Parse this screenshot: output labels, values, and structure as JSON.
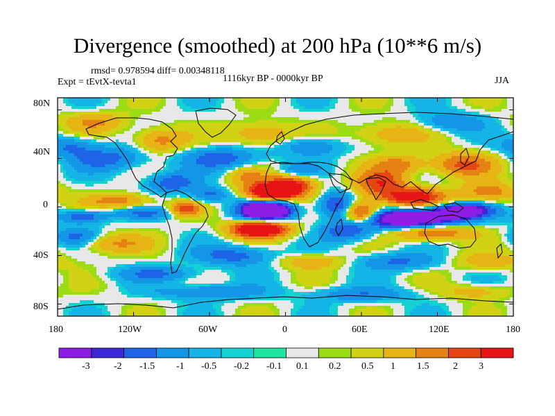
{
  "figure": {
    "title": "Divergence (smoothed) at 200 hPa (10**6 m/s)",
    "stats": "rmsd= 0.978594 diff= 0.00348118",
    "experiment": "Expt = tEvtX-tevta1",
    "period": "1116kyr BP - 0000kyr BP",
    "season": "JJA"
  },
  "axes": {
    "lat_labels": [
      "80N",
      "40N",
      "0",
      "40S",
      "80S"
    ],
    "lon_labels": [
      "180",
      "120W",
      "60W",
      "0",
      "60E",
      "120E",
      "180"
    ],
    "lon_range": [
      -180,
      180
    ],
    "lat_range": [
      -90,
      90
    ]
  },
  "colorbar": {
    "labels": [
      "-3",
      "-2",
      "-1.5",
      "-1",
      "-0.5",
      "-0.2",
      "-0.1",
      "0.1",
      "0.2",
      "0.5",
      "1",
      "1.5",
      "2",
      "3"
    ],
    "colors": [
      "#8c1ee6",
      "#3c28d7",
      "#1e64e6",
      "#1496e6",
      "#14b4e6",
      "#14d2d2",
      "#1ee6a0",
      "#e8e8e8",
      "#9bdc14",
      "#d2d214",
      "#e6b414",
      "#e68214",
      "#e64614",
      "#e61414"
    ]
  },
  "map_anomalies": [
    {
      "lon": -15,
      "lat": -3,
      "amp": -4.2,
      "rlon": 20,
      "rlat": 8
    },
    {
      "lon": -12,
      "lat": 12,
      "amp": 3.6,
      "rlon": 18,
      "rlat": 7
    },
    {
      "lon": -20,
      "lat": -18,
      "amp": 3.5,
      "rlon": 22,
      "rlat": 7
    },
    {
      "lon": 5,
      "lat": 18,
      "amp": 2.2,
      "rlon": 18,
      "rlat": 9
    },
    {
      "lon": 100,
      "lat": -10,
      "amp": -3.8,
      "rlon": 35,
      "rlat": 8
    },
    {
      "lon": 140,
      "lat": -3,
      "amp": -2.8,
      "rlon": 22,
      "rlat": 6
    },
    {
      "lon": 100,
      "lat": 8,
      "amp": 2.4,
      "rlon": 26,
      "rlat": 8
    },
    {
      "lon": 115,
      "lat": -20,
      "amp": 2.0,
      "rlon": 30,
      "rlat": 7
    },
    {
      "lon": 60,
      "lat": -5,
      "amp": 2.5,
      "rlon": 14,
      "rlat": 9
    },
    {
      "lon": 40,
      "lat": 2,
      "amp": -1.8,
      "rlon": 14,
      "rlat": 10
    },
    {
      "lon": 50,
      "lat": -20,
      "amp": -1.5,
      "rlon": 20,
      "rlat": 8
    },
    {
      "lon": 75,
      "lat": 20,
      "amp": 1.8,
      "rlon": 20,
      "rlat": 10
    },
    {
      "lon": 90,
      "lat": 35,
      "amp": 1.2,
      "rlon": 20,
      "rlat": 8
    },
    {
      "lon": 140,
      "lat": 35,
      "amp": 1.6,
      "rlon": 25,
      "rlat": 10
    },
    {
      "lon": 160,
      "lat": 12,
      "amp": 1.4,
      "rlon": 20,
      "rlat": 8
    },
    {
      "lon": -160,
      "lat": -8,
      "amp": -1.6,
      "rlon": 18,
      "rlat": 5
    },
    {
      "lon": -130,
      "lat": 5,
      "amp": 1.3,
      "rlon": 25,
      "rlat": 6
    },
    {
      "lon": -140,
      "lat": -30,
      "amp": 1.1,
      "rlon": 30,
      "rlat": 8
    },
    {
      "lon": -165,
      "lat": -25,
      "amp": -1.2,
      "rlon": 18,
      "rlat": 8
    },
    {
      "lon": -110,
      "lat": -5,
      "amp": -1.0,
      "rlon": 25,
      "rlat": 5
    },
    {
      "lon": -80,
      "lat": -2,
      "amp": 1.8,
      "rlon": 12,
      "rlat": 6
    },
    {
      "lon": -90,
      "lat": 20,
      "amp": -1.4,
      "rlon": 20,
      "rlat": 8
    },
    {
      "lon": -50,
      "lat": 40,
      "amp": -1.3,
      "rlon": 30,
      "rlat": 9
    },
    {
      "lon": -140,
      "lat": 40,
      "amp": -1.2,
      "rlon": 30,
      "rlat": 10
    },
    {
      "lon": -100,
      "lat": 55,
      "amp": 1.3,
      "rlon": 20,
      "rlat": 10
    },
    {
      "lon": -20,
      "lat": 60,
      "amp": 1.1,
      "rlon": 25,
      "rlat": 10
    },
    {
      "lon": 20,
      "lat": 50,
      "amp": -1.0,
      "rlon": 25,
      "rlat": 8
    },
    {
      "lon": 80,
      "lat": 60,
      "amp": 0.9,
      "rlon": 30,
      "rlat": 10
    },
    {
      "lon": 130,
      "lat": 70,
      "amp": -1.0,
      "rlon": 25,
      "rlat": 8
    },
    {
      "lon": -150,
      "lat": 70,
      "amp": 1.0,
      "rlon": 25,
      "rlat": 8
    },
    {
      "lon": -40,
      "lat": -40,
      "amp": -1.3,
      "rlon": 30,
      "rlat": 8
    },
    {
      "lon": 20,
      "lat": -45,
      "amp": 0.9,
      "rlon": 25,
      "rlat": 6
    },
    {
      "lon": 90,
      "lat": -45,
      "amp": -1.1,
      "rlon": 30,
      "rlat": 7
    },
    {
      "lon": 160,
      "lat": -45,
      "amp": 0.9,
      "rlon": 25,
      "rlat": 7
    },
    {
      "lon": -100,
      "lat": -55,
      "amp": -1.0,
      "rlon": 35,
      "rlat": 6
    },
    {
      "lon": -60,
      "lat": -70,
      "amp": -1.1,
      "rlon": 40,
      "rlat": 6
    },
    {
      "lon": 60,
      "lat": -72,
      "amp": -0.9,
      "rlon": 40,
      "rlat": 6
    },
    {
      "lon": 150,
      "lat": -70,
      "amp": 0.8,
      "rlon": 25,
      "rlat": 6
    },
    {
      "lon": -170,
      "lat": 50,
      "amp": -1.0,
      "rlon": 20,
      "rlat": 8
    },
    {
      "lon": 10,
      "lat": 30,
      "amp": -0.9,
      "rlon": 15,
      "rlat": 6
    },
    {
      "lon": -60,
      "lat": 10,
      "amp": -1.2,
      "rlon": 15,
      "rlat": 6
    },
    {
      "lon": -30,
      "lat": 25,
      "amp": 1.0,
      "rlon": 15,
      "rlat": 8
    }
  ]
}
